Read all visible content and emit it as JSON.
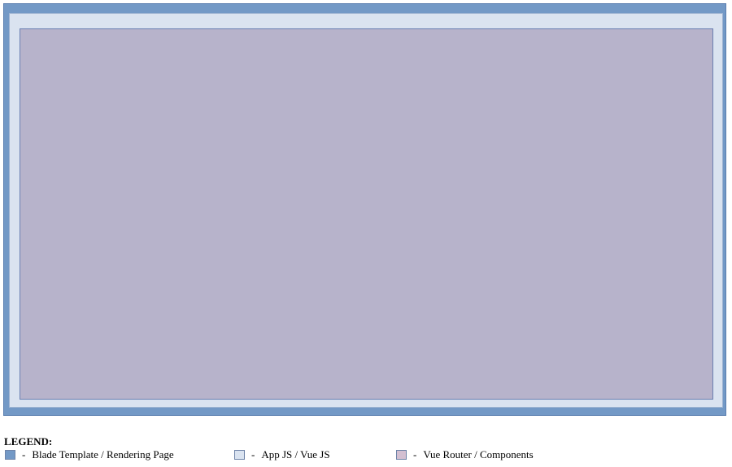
{
  "colors": {
    "blade_template": "#7399c6",
    "app_js": "#dae3f0",
    "vue_router": "#b7b3cb",
    "legend_swatch_vue_router": "#d3bfd1"
  },
  "legend": {
    "title": "LEGEND:",
    "separator": "-",
    "items": [
      {
        "label": "Blade Template / Rendering Page",
        "color": "#7399c6"
      },
      {
        "label": "App JS / Vue JS",
        "color": "#dae3f0"
      },
      {
        "label": "Vue Router / Components",
        "color": "#d3bfd1"
      }
    ]
  }
}
